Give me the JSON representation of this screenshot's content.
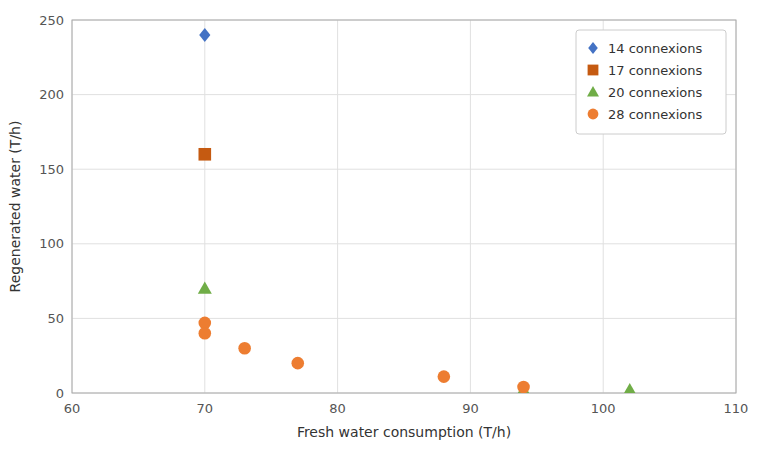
{
  "chart_data": {
    "type": "scatter",
    "x_label": "Fresh water consumption (T/h)",
    "y_label": "Regenerated water (T/h)",
    "series": [
      {
        "name": "14 connexions",
        "color": "#4472C4",
        "marker": "diamond",
        "x": [
          70
        ],
        "values": [
          240
        ]
      },
      {
        "name": "17 connexions",
        "color": "#C55A11",
        "marker": "square",
        "x": [
          70
        ],
        "values": [
          160
        ]
      },
      {
        "name": "20 connexions",
        "color": "#70AD47",
        "marker": "triangle",
        "x": [
          70,
          94,
          102
        ],
        "values": [
          70,
          2,
          2
        ]
      },
      {
        "name": "28 connexions",
        "color": "#ED7D31",
        "marker": "circle",
        "x": [
          70,
          70,
          73,
          77,
          88,
          94
        ],
        "values": [
          47,
          40,
          30,
          20,
          11,
          4
        ]
      }
    ],
    "xlim": [
      60,
      110
    ],
    "ylim": [
      0,
      250
    ],
    "xticks": [
      60,
      70,
      80,
      90,
      100,
      110
    ],
    "yticks": [
      0,
      50,
      100,
      150,
      200,
      250
    ],
    "grid": true,
    "legend": "upper right"
  }
}
